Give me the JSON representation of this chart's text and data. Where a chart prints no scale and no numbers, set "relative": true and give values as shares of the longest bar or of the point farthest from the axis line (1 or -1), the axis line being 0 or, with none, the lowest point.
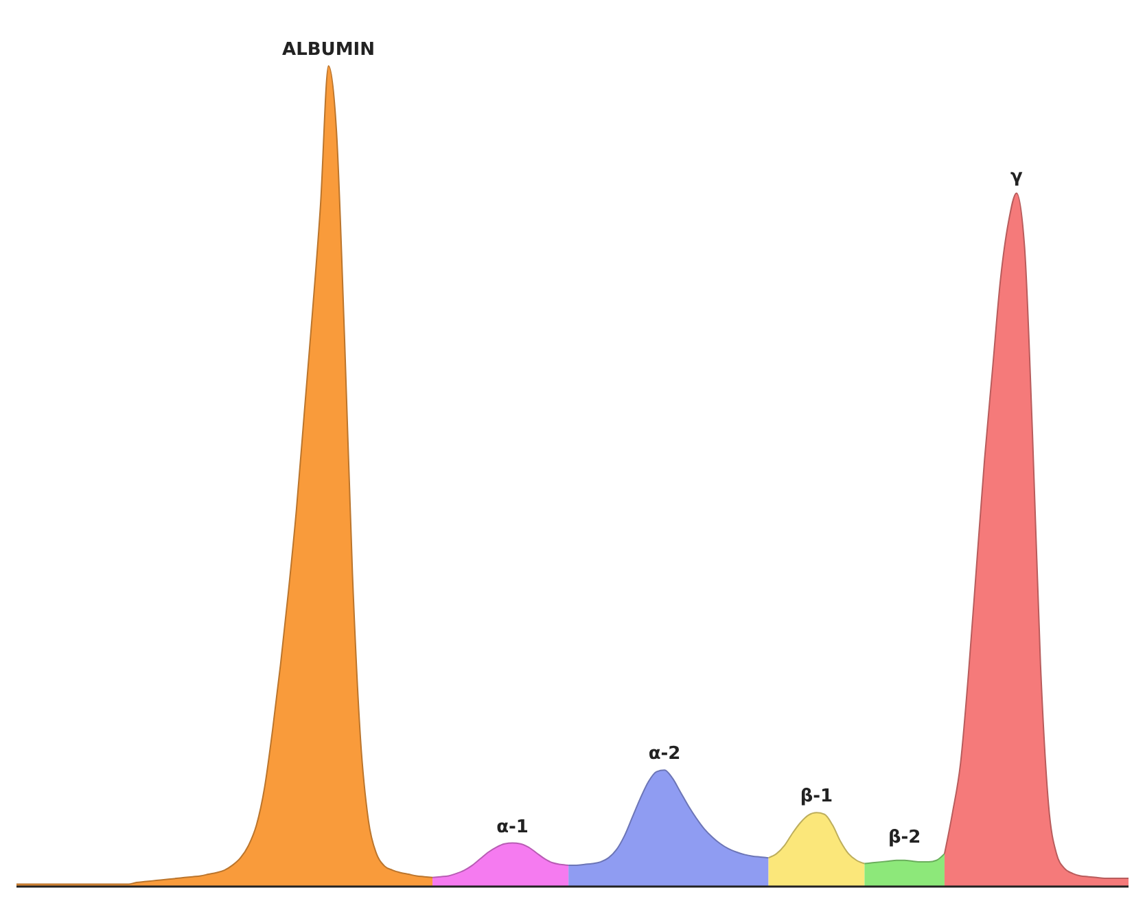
{
  "chart_data": {
    "type": "area",
    "relative": true,
    "categories": [
      null,
      null,
      null,
      null,
      null,
      null,
      null,
      null,
      null,
      null,
      null,
      null,
      null,
      null,
      null,
      null,
      null,
      null,
      null,
      null,
      null,
      null,
      null,
      null,
      null,
      null,
      null,
      null,
      null,
      null,
      null,
      null,
      null,
      null,
      null,
      null,
      null,
      null,
      null,
      null,
      null,
      null,
      null,
      null,
      null,
      null,
      null,
      null,
      null,
      null,
      null,
      null,
      null,
      null,
      null,
      null,
      null,
      null,
      null,
      null,
      null,
      null,
      null,
      null,
      null,
      null,
      null,
      null,
      null,
      null,
      null,
      null,
      null,
      null,
      null,
      null,
      null,
      null,
      null,
      null,
      null,
      null,
      null,
      null,
      null,
      null,
      null,
      null,
      null,
      null,
      null,
      null,
      null,
      null,
      null,
      null,
      null,
      null,
      null,
      null,
      null,
      null,
      null,
      null,
      null,
      null,
      null,
      null,
      null,
      null,
      null,
      null,
      null,
      null,
      null,
      null,
      null,
      null,
      null,
      null,
      null,
      null,
      null,
      null,
      null,
      null,
      null,
      null,
      null,
      null,
      null,
      null,
      null,
      null,
      null,
      null,
      null,
      null,
      null,
      null
    ],
    "series": [
      {
        "name": "ALBUMIN",
        "color": "#f99b3b",
        "values": [
          0.003,
          0.003,
          0.003,
          0.003,
          0.003,
          0.003,
          0.003,
          0.003,
          0.003,
          0.003,
          0.003,
          0.003,
          0.003,
          0.003,
          0.003,
          0.005,
          0.006,
          0.007,
          0.008,
          0.009,
          0.01,
          0.011,
          0.012,
          0.013,
          0.015,
          0.017,
          0.02,
          0.026,
          0.035,
          0.05,
          0.075,
          0.12,
          0.19,
          0.27,
          0.36,
          0.46,
          0.58,
          0.7,
          0.83,
          1,
          0.92,
          0.67,
          0.38,
          0.18,
          0.08,
          0.04,
          0.025,
          0.02,
          0.017,
          0.015,
          0.013,
          0.012,
          0.011,
          null,
          null,
          null,
          null,
          null,
          null,
          null,
          null,
          null,
          null,
          null,
          null,
          null,
          null,
          null,
          null,
          null,
          null,
          null,
          null,
          null,
          null,
          null,
          null,
          null,
          null,
          null,
          null,
          null,
          null,
          null,
          null,
          null,
          null,
          null,
          null,
          null,
          null,
          null,
          null,
          null,
          null,
          null,
          null,
          null,
          null,
          null,
          null,
          null,
          null,
          null,
          null,
          null,
          null,
          null,
          null,
          null,
          null,
          null,
          null,
          null,
          null,
          null,
          null,
          null,
          null,
          null,
          null,
          null,
          null,
          null,
          null,
          null,
          null,
          null,
          null,
          null,
          null,
          null,
          null,
          null,
          null,
          null,
          null,
          null,
          null,
          null
        ]
      },
      {
        "name": "α-1",
        "color": "#f57bf0",
        "values": [
          null,
          null,
          null,
          null,
          null,
          null,
          null,
          null,
          null,
          null,
          null,
          null,
          null,
          null,
          null,
          null,
          null,
          null,
          null,
          null,
          null,
          null,
          null,
          null,
          null,
          null,
          null,
          null,
          null,
          null,
          null,
          null,
          null,
          null,
          null,
          null,
          null,
          null,
          null,
          null,
          null,
          null,
          null,
          null,
          null,
          null,
          null,
          null,
          null,
          null,
          null,
          null,
          0.011,
          0.012,
          0.013,
          0.016,
          0.02,
          0.026,
          0.034,
          0.042,
          0.048,
          0.052,
          0.053,
          0.052,
          0.048,
          0.041,
          0.034,
          0.029,
          0.027,
          0.026,
          null,
          null,
          null,
          null,
          null,
          null,
          null,
          null,
          null,
          null,
          null,
          null,
          null,
          null,
          null,
          null,
          null,
          null,
          null,
          null,
          null,
          null,
          null,
          null,
          null,
          null,
          null,
          null,
          null,
          null,
          null,
          null,
          null,
          null,
          null,
          null,
          null,
          null,
          null,
          null,
          null,
          null,
          null,
          null,
          null,
          null,
          null,
          null,
          null,
          null,
          null,
          null,
          null,
          null,
          null,
          null,
          null,
          null,
          null,
          null,
          null,
          null,
          null,
          null,
          null,
          null,
          null,
          null,
          null,
          null
        ]
      },
      {
        "name": "α-2",
        "color": "#8f9cf2",
        "values": [
          null,
          null,
          null,
          null,
          null,
          null,
          null,
          null,
          null,
          null,
          null,
          null,
          null,
          null,
          null,
          null,
          null,
          null,
          null,
          null,
          null,
          null,
          null,
          null,
          null,
          null,
          null,
          null,
          null,
          null,
          null,
          null,
          null,
          null,
          null,
          null,
          null,
          null,
          null,
          null,
          null,
          null,
          null,
          null,
          null,
          null,
          null,
          null,
          null,
          null,
          null,
          null,
          null,
          null,
          null,
          null,
          null,
          null,
          null,
          null,
          null,
          null,
          null,
          null,
          null,
          null,
          null,
          null,
          null,
          0.026,
          0.026,
          0.027,
          0.028,
          0.03,
          0.035,
          0.045,
          0.062,
          0.085,
          0.108,
          0.128,
          0.14,
          0.142,
          0.132,
          0.115,
          0.098,
          0.083,
          0.07,
          0.06,
          0.052,
          0.046,
          0.042,
          0.039,
          0.037,
          0.036,
          0.035,
          null,
          null,
          null,
          null,
          null,
          null,
          null,
          null,
          null,
          null,
          null,
          null,
          null,
          null,
          null,
          null,
          null,
          null,
          null,
          null,
          null,
          null,
          null,
          null,
          null,
          null,
          null,
          null,
          null,
          null,
          null,
          null,
          null,
          null,
          null,
          null,
          null,
          null,
          null,
          null,
          null,
          null,
          null,
          null,
          null
        ]
      },
      {
        "name": "β-1",
        "color": "#fbe77a",
        "values": [
          null,
          null,
          null,
          null,
          null,
          null,
          null,
          null,
          null,
          null,
          null,
          null,
          null,
          null,
          null,
          null,
          null,
          null,
          null,
          null,
          null,
          null,
          null,
          null,
          null,
          null,
          null,
          null,
          null,
          null,
          null,
          null,
          null,
          null,
          null,
          null,
          null,
          null,
          null,
          null,
          null,
          null,
          null,
          null,
          null,
          null,
          null,
          null,
          null,
          null,
          null,
          null,
          null,
          null,
          null,
          null,
          null,
          null,
          null,
          null,
          null,
          null,
          null,
          null,
          null,
          null,
          null,
          null,
          null,
          null,
          null,
          null,
          null,
          null,
          null,
          null,
          null,
          null,
          null,
          null,
          null,
          null,
          null,
          null,
          null,
          null,
          null,
          null,
          null,
          null,
          null,
          null,
          null,
          null,
          0.035,
          0.04,
          0.05,
          0.065,
          0.078,
          0.087,
          0.09,
          0.088,
          0.075,
          0.055,
          0.04,
          0.032,
          0.028,
          null,
          null,
          null,
          null,
          null,
          null,
          null,
          null,
          null,
          null,
          null,
          null,
          null,
          null,
          null,
          null,
          null,
          null,
          null,
          null,
          null,
          null,
          null,
          null,
          null,
          null,
          null,
          null,
          null,
          null,
          null,
          null,
          null
        ]
      },
      {
        "name": "β-2",
        "color": "#8de87a",
        "values": [
          null,
          null,
          null,
          null,
          null,
          null,
          null,
          null,
          null,
          null,
          null,
          null,
          null,
          null,
          null,
          null,
          null,
          null,
          null,
          null,
          null,
          null,
          null,
          null,
          null,
          null,
          null,
          null,
          null,
          null,
          null,
          null,
          null,
          null,
          null,
          null,
          null,
          null,
          null,
          null,
          null,
          null,
          null,
          null,
          null,
          null,
          null,
          null,
          null,
          null,
          null,
          null,
          null,
          null,
          null,
          null,
          null,
          null,
          null,
          null,
          null,
          null,
          null,
          null,
          null,
          null,
          null,
          null,
          null,
          null,
          null,
          null,
          null,
          null,
          null,
          null,
          null,
          null,
          null,
          null,
          null,
          null,
          null,
          null,
          null,
          null,
          null,
          null,
          null,
          null,
          null,
          null,
          null,
          null,
          null,
          null,
          null,
          null,
          null,
          null,
          null,
          null,
          null,
          null,
          null,
          null,
          0.028,
          0.029,
          0.03,
          0.031,
          0.032,
          0.032,
          0.031,
          0.03,
          0.03,
          0.032,
          0.04,
          null,
          null,
          null,
          null,
          null,
          null,
          null,
          null,
          null,
          null,
          null,
          null,
          null,
          null,
          null,
          null,
          null,
          null,
          null,
          null,
          null,
          null,
          null
        ]
      },
      {
        "name": "γ",
        "color": "#f57a7a",
        "values": [
          null,
          null,
          null,
          null,
          null,
          null,
          null,
          null,
          null,
          null,
          null,
          null,
          null,
          null,
          null,
          null,
          null,
          null,
          null,
          null,
          null,
          null,
          null,
          null,
          null,
          null,
          null,
          null,
          null,
          null,
          null,
          null,
          null,
          null,
          null,
          null,
          null,
          null,
          null,
          null,
          null,
          null,
          null,
          null,
          null,
          null,
          null,
          null,
          null,
          null,
          null,
          null,
          null,
          null,
          null,
          null,
          null,
          null,
          null,
          null,
          null,
          null,
          null,
          null,
          null,
          null,
          null,
          null,
          null,
          null,
          null,
          null,
          null,
          null,
          null,
          null,
          null,
          null,
          null,
          null,
          null,
          null,
          null,
          null,
          null,
          null,
          null,
          null,
          null,
          null,
          null,
          null,
          null,
          null,
          null,
          null,
          null,
          null,
          null,
          null,
          null,
          null,
          null,
          null,
          null,
          null,
          null,
          null,
          null,
          null,
          null,
          null,
          null,
          null,
          null,
          null,
          0.04,
          0.09,
          0.15,
          0.26,
          0.39,
          0.52,
          0.63,
          0.74,
          0.81,
          0.845,
          0.78,
          0.55,
          0.27,
          0.1,
          0.04,
          0.022,
          0.016,
          0.013,
          0.012,
          0.011,
          0.01,
          0.01,
          0.01,
          0.01
        ]
      }
    ]
  }
}
